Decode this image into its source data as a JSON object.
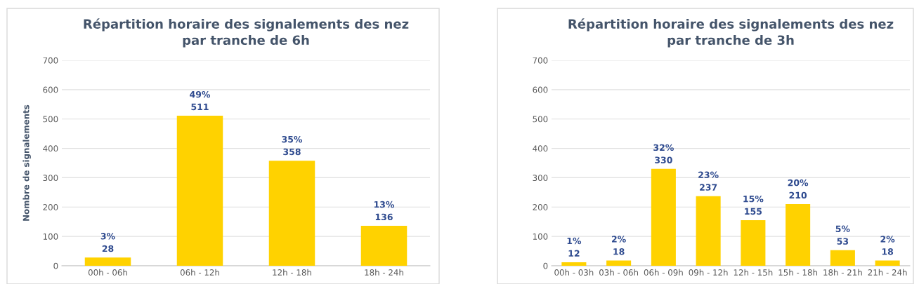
{
  "chart_data": [
    {
      "type": "bar",
      "title": "Répartition horaire des signalements des nez\npar tranche de 6h",
      "ylabel": "Nombre de signalements",
      "categories": [
        "00h - 06h",
        "06h - 12h",
        "12h - 18h",
        "18h - 24h"
      ],
      "values": [
        28,
        511,
        358,
        136
      ],
      "color": "#ffd200",
      "value_labels": [
        "3%\n28",
        "49%\n511",
        "35%\n358",
        "13%\n136"
      ],
      "ylim": [
        0,
        700
      ],
      "yticks": [
        0,
        100,
        200,
        300,
        400,
        500,
        600,
        700
      ],
      "grid": "y"
    },
    {
      "type": "bar",
      "title": "Répartition horaire des signalements des nez\npar tranche de 3h",
      "categories": [
        "00h - 03h",
        "03h - 06h",
        "06h - 09h",
        "09h - 12h",
        "12h - 15h",
        "15h - 18h",
        "18h - 21h",
        "21h - 24h"
      ],
      "values": [
        12,
        18,
        330,
        237,
        155,
        210,
        53,
        18
      ],
      "color": "#ffd200",
      "value_labels": [
        "1%\n12",
        "2%\n18",
        "32%\n330",
        "23%\n237",
        "15%\n155",
        "20%\n210",
        "5%\n53",
        "2%\n18"
      ],
      "ylim": [
        0,
        700
      ],
      "yticks": [
        0,
        100,
        200,
        300,
        400,
        500,
        600,
        700
      ],
      "grid": "y"
    }
  ]
}
